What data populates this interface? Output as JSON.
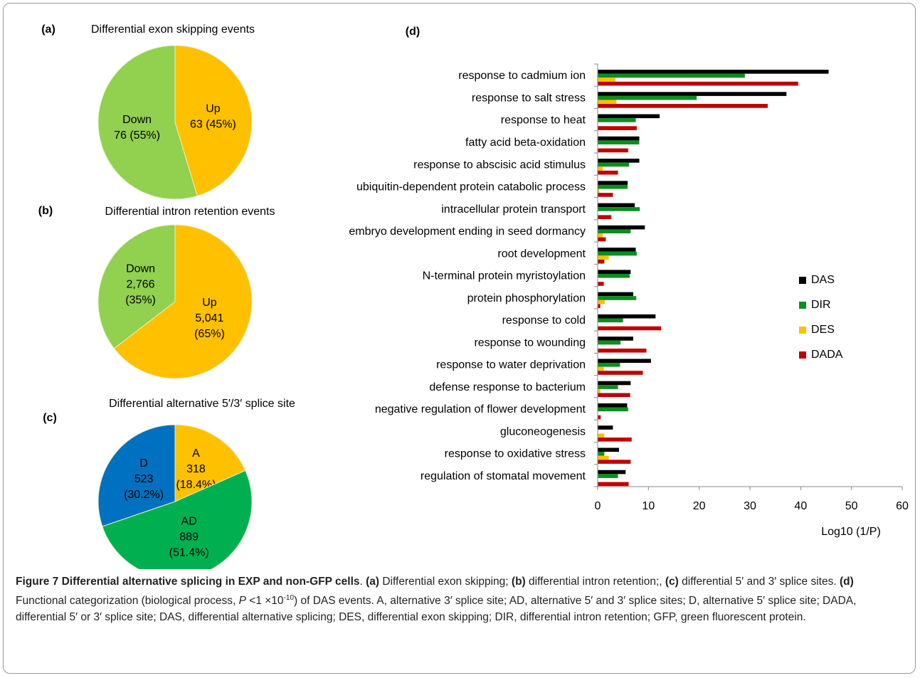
{
  "chart_data": [
    {
      "type": "pie",
      "panel": "(a)",
      "title": "Differential exon skipping events",
      "categories": [
        "Up",
        "Down"
      ],
      "values": [
        63,
        76
      ],
      "value_labels": [
        [
          "63 (45%)"
        ],
        [
          "76 (55%)"
        ]
      ],
      "colors": [
        "#ffc000",
        "#92d050"
      ]
    },
    {
      "type": "pie",
      "panel": "(b)",
      "title": "Differential intron retention events",
      "categories": [
        "Up",
        "Down"
      ],
      "values": [
        5041,
        2766
      ],
      "value_labels": [
        [
          "5,041",
          "(65%)"
        ],
        [
          "2,766",
          "(35%)"
        ]
      ],
      "colors": [
        "#ffc000",
        "#92d050"
      ]
    },
    {
      "type": "pie",
      "panel": "(c)",
      "title": "Differential alternative 5′/3′ splice site",
      "categories": [
        "A",
        "AD",
        "D"
      ],
      "values": [
        318,
        889,
        523
      ],
      "value_labels": [
        [
          "318",
          "(18.4%)"
        ],
        [
          "889",
          "(51.4%)"
        ],
        [
          "523",
          "(30.2%)"
        ]
      ],
      "colors": [
        "#ffc000",
        "#00b050",
        "#0070c0"
      ]
    },
    {
      "type": "bar",
      "panel": "(d)",
      "orientation": "horizontal",
      "categories": [
        "response to cadmium ion",
        "response to salt stress",
        "response to heat",
        "fatty acid beta-oxidation",
        "response to abscisic acid stimulus",
        "ubiquitin-dependent protein catabolic process",
        "intracellular protein transport",
        "embryo development ending in seed dormancy",
        "root development",
        "N-terminal protein myristoylation",
        "protein phosphorylation",
        "response to cold",
        "response to wounding",
        "response to water deprivation",
        "defense response to bacterium",
        "negative regulation of flower development",
        "gluconeogenesis",
        "response to oxidative stress",
        "regulation of stomatal movement"
      ],
      "series": [
        {
          "name": "DAS",
          "color": "#000000",
          "values": [
            45.5,
            37.2,
            12.2,
            8.2,
            8.2,
            5.9,
            7.3,
            9.3,
            7.5,
            6.5,
            7,
            11.4,
            7,
            10.5,
            6.5,
            5.8,
            3,
            4.2,
            5.5
          ]
        },
        {
          "name": "DIR",
          "color": "#0a8f1f",
          "values": [
            29,
            19.5,
            7.5,
            8.2,
            6.2,
            5.9,
            8.3,
            6.5,
            7.7,
            6.3,
            7.6,
            5,
            4.5,
            4.4,
            4,
            6,
            0,
            1.3,
            4
          ]
        },
        {
          "name": "DES",
          "color": "#ffc000",
          "values": [
            3.5,
            3.7,
            0,
            0,
            1,
            0.3,
            0,
            1,
            2.2,
            0,
            1.4,
            0,
            0,
            1.2,
            0.5,
            0,
            1.3,
            2.2,
            0
          ]
        },
        {
          "name": "DADA",
          "color": "#c00000",
          "values": [
            39.5,
            33.5,
            7.7,
            6,
            4,
            3,
            2.7,
            1.6,
            1.3,
            1.2,
            0.5,
            12.5,
            9.6,
            8.9,
            6.4,
            0.6,
            6.7,
            6.5,
            6.1
          ]
        }
      ],
      "xlim": [
        0,
        60
      ],
      "xticks": [
        0,
        10,
        20,
        30,
        40,
        50,
        60
      ],
      "xlabel": "Log10 (1/P)",
      "legend": "right"
    }
  ],
  "caption": [
    {
      "text": "Figure 7 Differential alternative splicing in EXP and non-GFP cells",
      "style": "bold"
    },
    {
      "text": ". "
    },
    {
      "text": "(a)",
      "style": "bold"
    },
    {
      "text": " Differential exon skipping; "
    },
    {
      "text": "(b)",
      "style": "bold"
    },
    {
      "text": " differential intron retention;, "
    },
    {
      "text": "(c)",
      "style": "bold"
    },
    {
      "text": " differential 5′ and 3′ splice sites. "
    },
    {
      "text": "(d)",
      "style": "bold"
    },
    {
      "text": " Functional categorization (biological process, "
    },
    {
      "text": "P",
      "style": "italic"
    },
    {
      "text": " <1 ×10"
    },
    {
      "text": "-10",
      "style": "sup"
    },
    {
      "text": ") of DAS events. A, alternative 3′ splice site; AD, alternative 5′ and 3′ splice sites; D, alternative 5′ splice site; DADA, differential 5′ or 3′ splice site; DAS, differential alternative splicing; DES, differential exon skipping; DIR, differential intron retention; GFP, green fluorescent protein."
    }
  ]
}
